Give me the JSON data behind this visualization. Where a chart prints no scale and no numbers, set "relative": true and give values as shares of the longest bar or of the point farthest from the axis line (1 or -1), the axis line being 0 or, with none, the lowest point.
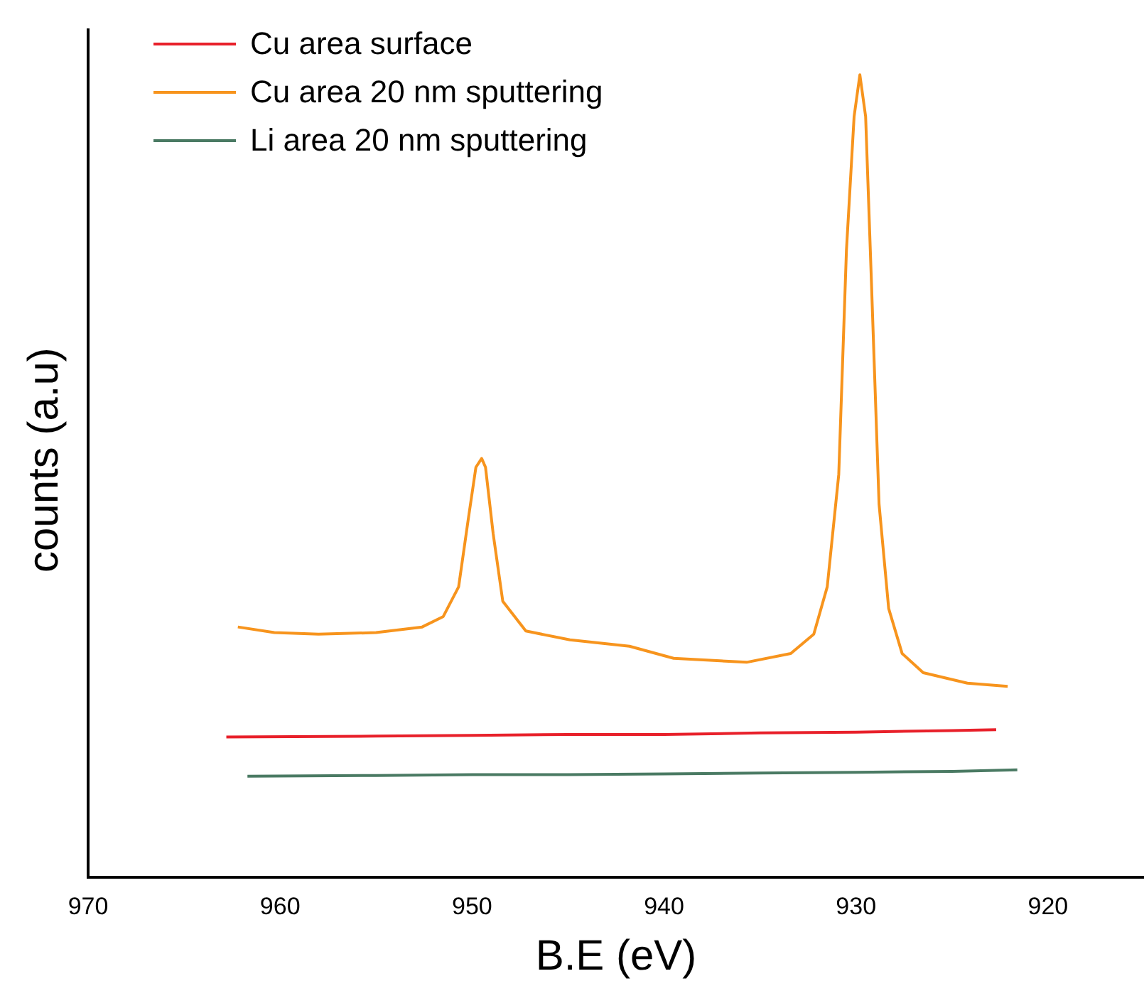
{
  "chart_data": {
    "type": "line",
    "xlabel": "B.E (eV)",
    "ylabel": "counts (a.u)",
    "relative": true,
    "xlim": [
      970,
      915
    ],
    "xticks": [
      970,
      960,
      950,
      940,
      930,
      920
    ],
    "legend": "top left",
    "marker": "none",
    "line_style": "solid",
    "grid": false,
    "series": [
      {
        "name": "Cu area surface",
        "color": "#e8202a",
        "x": [
          962.8,
          955,
          950,
          945,
          940,
          935,
          930,
          925,
          922.7
        ],
        "values": [
          0.175,
          0.176,
          0.177,
          0.178,
          0.178,
          0.18,
          0.181,
          0.183,
          0.184
        ]
      },
      {
        "name": "Cu area 20 nm sputtering",
        "color": "#f7941d",
        "x": [
          962.2,
          960.3,
          958,
          955,
          952.6,
          951.5,
          950.7,
          950.2,
          949.8,
          949.5,
          949.3,
          948.9,
          948.4,
          947.2,
          944.9,
          941.8,
          939.5,
          935.7,
          933.4,
          932.2,
          931.5,
          930.9,
          930.5,
          930.1,
          929.8,
          929.5,
          929.2,
          928.8,
          928.3,
          927.6,
          926.5,
          924.2,
          922.1
        ],
        "values": [
          0.312,
          0.305,
          0.303,
          0.305,
          0.312,
          0.325,
          0.362,
          0.446,
          0.511,
          0.522,
          0.511,
          0.428,
          0.344,
          0.307,
          0.296,
          0.288,
          0.273,
          0.268,
          0.279,
          0.303,
          0.362,
          0.502,
          0.781,
          0.948,
          1.0,
          0.948,
          0.743,
          0.465,
          0.335,
          0.279,
          0.255,
          0.242,
          0.238
        ]
      },
      {
        "name": "Li area 20 nm sputtering",
        "color": "#4a7a63",
        "x": [
          961.7,
          955,
          950,
          945,
          940,
          935,
          930,
          925,
          921.6
        ],
        "values": [
          0.126,
          0.127,
          0.128,
          0.128,
          0.129,
          0.13,
          0.131,
          0.132,
          0.134
        ]
      }
    ]
  }
}
